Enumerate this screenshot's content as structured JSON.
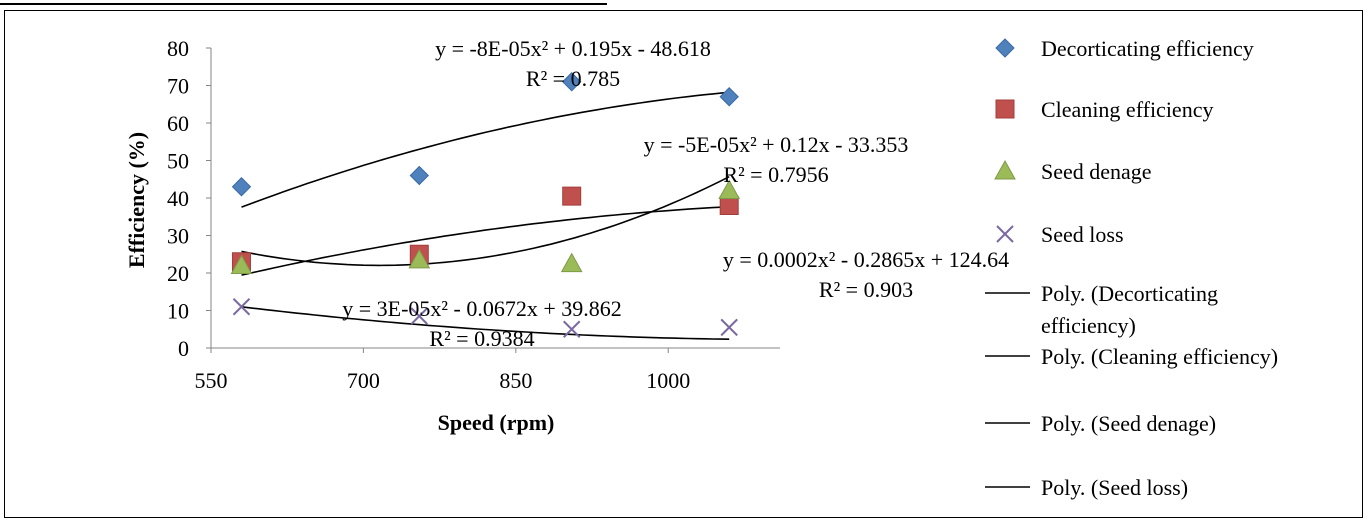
{
  "chart_data": {
    "type": "scatter",
    "title": "",
    "xlabel": "Speed (rpm)",
    "ylabel": "Efficiency (%)",
    "xlim": [
      550,
      1110
    ],
    "ylim": [
      0,
      80
    ],
    "xticks": [
      550,
      700,
      850,
      1000
    ],
    "yticks": [
      0,
      10,
      20,
      30,
      40,
      50,
      60,
      70,
      80
    ],
    "grid": false,
    "legend_position": "right",
    "series": [
      {
        "name": "Decorticating efficiency",
        "marker": "diamond",
        "color": "#4f81bd",
        "x": [
          580,
          755,
          905,
          1060
        ],
        "y": [
          43,
          46,
          71,
          67
        ]
      },
      {
        "name": "Cleaning efficiency",
        "marker": "square",
        "color": "#c0504d",
        "x": [
          580,
          755,
          905,
          1060
        ],
        "y": [
          23,
          25,
          40.5,
          38
        ]
      },
      {
        "name": "Seed denage",
        "marker": "triangle",
        "color": "#9bbb59",
        "x": [
          580,
          755,
          905,
          1060
        ],
        "y": [
          22,
          23.5,
          22.5,
          42
        ]
      },
      {
        "name": "Seed loss",
        "marker": "x",
        "color": "#7b6aa0",
        "x": [
          580,
          755,
          905,
          1060
        ],
        "y": [
          11,
          8.5,
          5,
          5.5
        ]
      }
    ],
    "trendlines": [
      {
        "name": "Poly. (Decorticating efficiency)",
        "a": -8e-05,
        "b": 0.195,
        "c": -48.618,
        "eq_text": "y = -8E-05x² + 0.195x - 48.618",
        "r2_text": "R² = 0.785"
      },
      {
        "name": "Poly. (Cleaning efficiency)",
        "a": -5e-05,
        "b": 0.12,
        "c": -33.353,
        "eq_text": "y = -5E-05x² + 0.12x - 33.353",
        "r2_text": "R² = 0.7956"
      },
      {
        "name": "Poly. (Seed denage)",
        "a": 0.0002,
        "b": -0.2865,
        "c": 124.64,
        "eq_text": "y = 0.0002x² - 0.2865x + 124.64",
        "r2_text": "R² = 0.903"
      },
      {
        "name": "Poly. (Seed loss)",
        "a": 3e-05,
        "b": -0.0672,
        "c": 39.862,
        "eq_text": "y = 3E-05x² - 0.0672x + 39.862",
        "r2_text": "R² = 0.9384"
      }
    ]
  }
}
